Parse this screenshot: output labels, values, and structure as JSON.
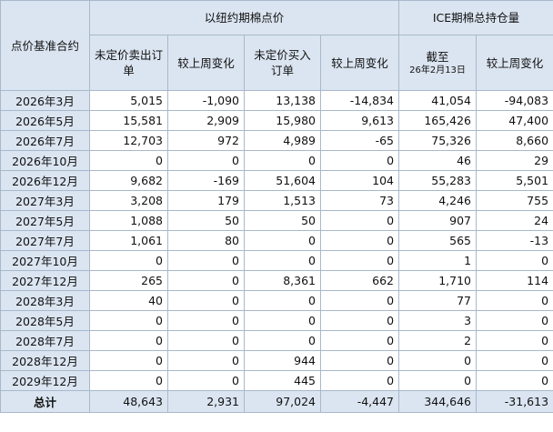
{
  "header": {
    "corner": "点价基准合约",
    "group_ny": "以纽约期棉点价",
    "group_ice": "ICE期棉总持仓量",
    "col_unfixed_sell": "未定价卖出订单",
    "col_sell_change": "较上周变化",
    "col_unfixed_buy": "未定价买入订单",
    "col_buy_change": "较上周变化",
    "col_as_of": "截至",
    "col_as_of_date": "26年2月13日",
    "col_oi_change": "较上周变化"
  },
  "rows": [
    {
      "contract": "2026年3月",
      "sell": "5,015",
      "sell_chg": "-1,090",
      "buy": "13,138",
      "buy_chg": "-14,834",
      "oi": "41,054",
      "oi_chg": "-94,083"
    },
    {
      "contract": "2026年5月",
      "sell": "15,581",
      "sell_chg": "2,909",
      "buy": "15,980",
      "buy_chg": "9,613",
      "oi": "165,426",
      "oi_chg": "47,400"
    },
    {
      "contract": "2026年7月",
      "sell": "12,703",
      "sell_chg": "972",
      "buy": "4,989",
      "buy_chg": "-65",
      "oi": "75,326",
      "oi_chg": "8,660"
    },
    {
      "contract": "2026年10月",
      "sell": "0",
      "sell_chg": "0",
      "buy": "0",
      "buy_chg": "0",
      "oi": "46",
      "oi_chg": "29"
    },
    {
      "contract": "2026年12月",
      "sell": "9,682",
      "sell_chg": "-169",
      "buy": "51,604",
      "buy_chg": "104",
      "oi": "55,283",
      "oi_chg": "5,501"
    },
    {
      "contract": "2027年3月",
      "sell": "3,208",
      "sell_chg": "179",
      "buy": "1,513",
      "buy_chg": "73",
      "oi": "4,246",
      "oi_chg": "755"
    },
    {
      "contract": "2027年5月",
      "sell": "1,088",
      "sell_chg": "50",
      "buy": "50",
      "buy_chg": "0",
      "oi": "907",
      "oi_chg": "24"
    },
    {
      "contract": "2027年7月",
      "sell": "1,061",
      "sell_chg": "80",
      "buy": "0",
      "buy_chg": "0",
      "oi": "565",
      "oi_chg": "-13"
    },
    {
      "contract": "2027年10月",
      "sell": "0",
      "sell_chg": "0",
      "buy": "0",
      "buy_chg": "0",
      "oi": "1",
      "oi_chg": "0"
    },
    {
      "contract": "2027年12月",
      "sell": "265",
      "sell_chg": "0",
      "buy": "8,361",
      "buy_chg": "662",
      "oi": "1,710",
      "oi_chg": "114"
    },
    {
      "contract": "2028年3月",
      "sell": "40",
      "sell_chg": "0",
      "buy": "0",
      "buy_chg": "0",
      "oi": "77",
      "oi_chg": "0"
    },
    {
      "contract": "2028年5月",
      "sell": "0",
      "sell_chg": "0",
      "buy": "0",
      "buy_chg": "0",
      "oi": "3",
      "oi_chg": "0"
    },
    {
      "contract": "2028年7月",
      "sell": "0",
      "sell_chg": "0",
      "buy": "0",
      "buy_chg": "0",
      "oi": "2",
      "oi_chg": "0"
    },
    {
      "contract": "2028年12月",
      "sell": "0",
      "sell_chg": "0",
      "buy": "944",
      "buy_chg": "0",
      "oi": "0",
      "oi_chg": "0"
    },
    {
      "contract": "2029年12月",
      "sell": "0",
      "sell_chg": "0",
      "buy": "445",
      "buy_chg": "0",
      "oi": "0",
      "oi_chg": "0"
    }
  ],
  "total": {
    "label": "总计",
    "sell": "48,643",
    "sell_chg": "2,931",
    "buy": "97,024",
    "buy_chg": "-4,447",
    "oi": "344,646",
    "oi_chg": "-31,613"
  }
}
